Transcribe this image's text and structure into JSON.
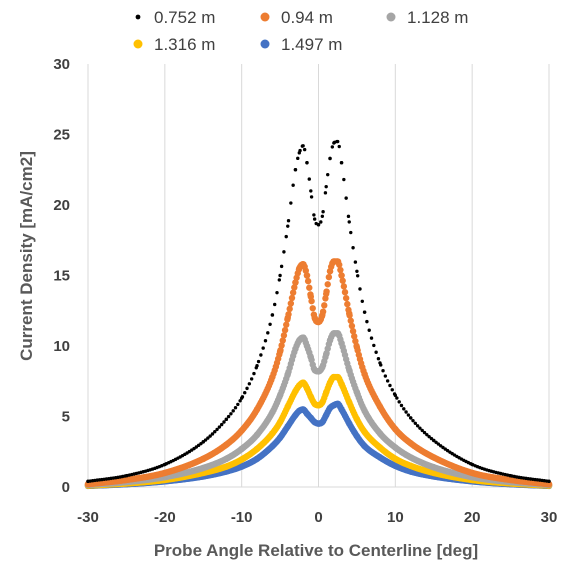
{
  "chart_data": {
    "type": "scatter",
    "title": "",
    "xlabel": "Probe Angle Relative to Centerline [deg]",
    "ylabel": "Current Density [mA/cm2]",
    "xlim": [
      -30,
      30
    ],
    "ylim": [
      0,
      30
    ],
    "x_ticks": [
      "-30",
      "-20",
      "-10",
      "0",
      "10",
      "20",
      "30"
    ],
    "y_ticks": [
      "0",
      "5",
      "10",
      "15",
      "20",
      "25",
      "30"
    ],
    "grid": "vertical",
    "legend_position": "top",
    "series": [
      {
        "name": "0.752 m",
        "color": "#000000",
        "marker_size": 1.7,
        "x": [
          -30,
          -25,
          -20,
          -15,
          -12,
          -10,
          -8,
          -6,
          -5,
          -4,
          -3,
          -2.5,
          -2,
          -1.5,
          -1,
          -0.5,
          0,
          0.5,
          1,
          1.5,
          2,
          2.5,
          3,
          4,
          5,
          6,
          8,
          10,
          12,
          15,
          20,
          25,
          30
        ],
        "y": [
          0.4,
          0.8,
          1.6,
          3.2,
          4.8,
          6.3,
          8.6,
          12.2,
          15.0,
          18.5,
          22.5,
          23.7,
          24.2,
          23.0,
          21.0,
          19.0,
          18.6,
          19.2,
          21.3,
          23.3,
          24.4,
          24.5,
          23.0,
          18.8,
          15.3,
          12.4,
          8.8,
          6.5,
          4.9,
          3.3,
          1.6,
          0.8,
          0.4
        ]
      },
      {
        "name": "0.94 m",
        "color": "#ED7D31",
        "marker_size": 3.2,
        "x": [
          -30,
          -25,
          -20,
          -15,
          -12,
          -10,
          -8,
          -6,
          -5,
          -4,
          -3,
          -2.5,
          -2,
          -1.5,
          -1,
          -0.5,
          0,
          0.5,
          1,
          1.5,
          2,
          2.5,
          3,
          4,
          5,
          6,
          8,
          10,
          12,
          15,
          20,
          25,
          30
        ],
        "y": [
          0.2,
          0.5,
          1.0,
          2.0,
          3.0,
          4.0,
          5.5,
          7.8,
          9.6,
          12.0,
          14.5,
          15.5,
          15.8,
          15.0,
          13.5,
          12.0,
          11.7,
          12.2,
          13.7,
          15.3,
          16.0,
          16.0,
          15.0,
          12.3,
          9.9,
          8.0,
          5.7,
          4.1,
          3.1,
          2.1,
          1.0,
          0.5,
          0.2
        ]
      },
      {
        "name": "1.128 m",
        "color": "#A5A5A5",
        "marker_size": 3.2,
        "x": [
          -30,
          -25,
          -20,
          -15,
          -12,
          -10,
          -8,
          -6,
          -5,
          -4,
          -3,
          -2.5,
          -2,
          -1.5,
          -1,
          -0.5,
          0,
          0.5,
          1,
          1.5,
          2,
          2.5,
          3,
          4,
          5,
          6,
          8,
          10,
          12,
          15,
          20,
          25,
          30
        ],
        "y": [
          0.15,
          0.35,
          0.7,
          1.35,
          2.0,
          2.7,
          3.7,
          5.3,
          6.5,
          8.0,
          9.8,
          10.4,
          10.6,
          10.0,
          9.2,
          8.3,
          8.2,
          8.5,
          9.4,
          10.4,
          10.9,
          10.9,
          10.2,
          8.3,
          6.7,
          5.4,
          3.8,
          2.8,
          2.1,
          1.4,
          0.7,
          0.35,
          0.15
        ]
      },
      {
        "name": "1.316 m",
        "color": "#FFC000",
        "marker_size": 3.2,
        "x": [
          -30,
          -25,
          -20,
          -15,
          -12,
          -10,
          -8,
          -6,
          -5,
          -4,
          -3,
          -2.5,
          -2,
          -1.5,
          -1,
          -0.5,
          0,
          0.5,
          1,
          1.5,
          2,
          2.5,
          3,
          4,
          5,
          6,
          8,
          10,
          12,
          15,
          20,
          25,
          30
        ],
        "y": [
          0.1,
          0.25,
          0.5,
          1.0,
          1.45,
          1.95,
          2.7,
          3.8,
          4.6,
          5.7,
          6.8,
          7.2,
          7.4,
          7.0,
          6.4,
          5.9,
          5.8,
          6.0,
          6.7,
          7.4,
          7.8,
          7.8,
          7.3,
          6.0,
          4.8,
          3.9,
          2.8,
          2.0,
          1.5,
          1.0,
          0.5,
          0.25,
          0.1
        ]
      },
      {
        "name": "1.497 m",
        "color": "#4472C4",
        "marker_size": 3.2,
        "x": [
          -30,
          -25,
          -20,
          -15,
          -12,
          -10,
          -8,
          -6,
          -5,
          -4,
          -3,
          -2.5,
          -2,
          -1.5,
          -1,
          -0.5,
          0,
          0.5,
          1,
          1.5,
          2,
          2.5,
          3,
          4,
          5,
          6,
          8,
          10,
          12,
          15,
          20,
          25,
          30
        ],
        "y": [
          0.08,
          0.2,
          0.4,
          0.75,
          1.1,
          1.45,
          2.0,
          2.9,
          3.5,
          4.3,
          5.1,
          5.4,
          5.5,
          5.2,
          4.9,
          4.6,
          4.5,
          4.6,
          5.1,
          5.6,
          5.8,
          5.9,
          5.5,
          4.5,
          3.6,
          2.9,
          2.1,
          1.5,
          1.1,
          0.75,
          0.4,
          0.2,
          0.08
        ]
      }
    ]
  }
}
